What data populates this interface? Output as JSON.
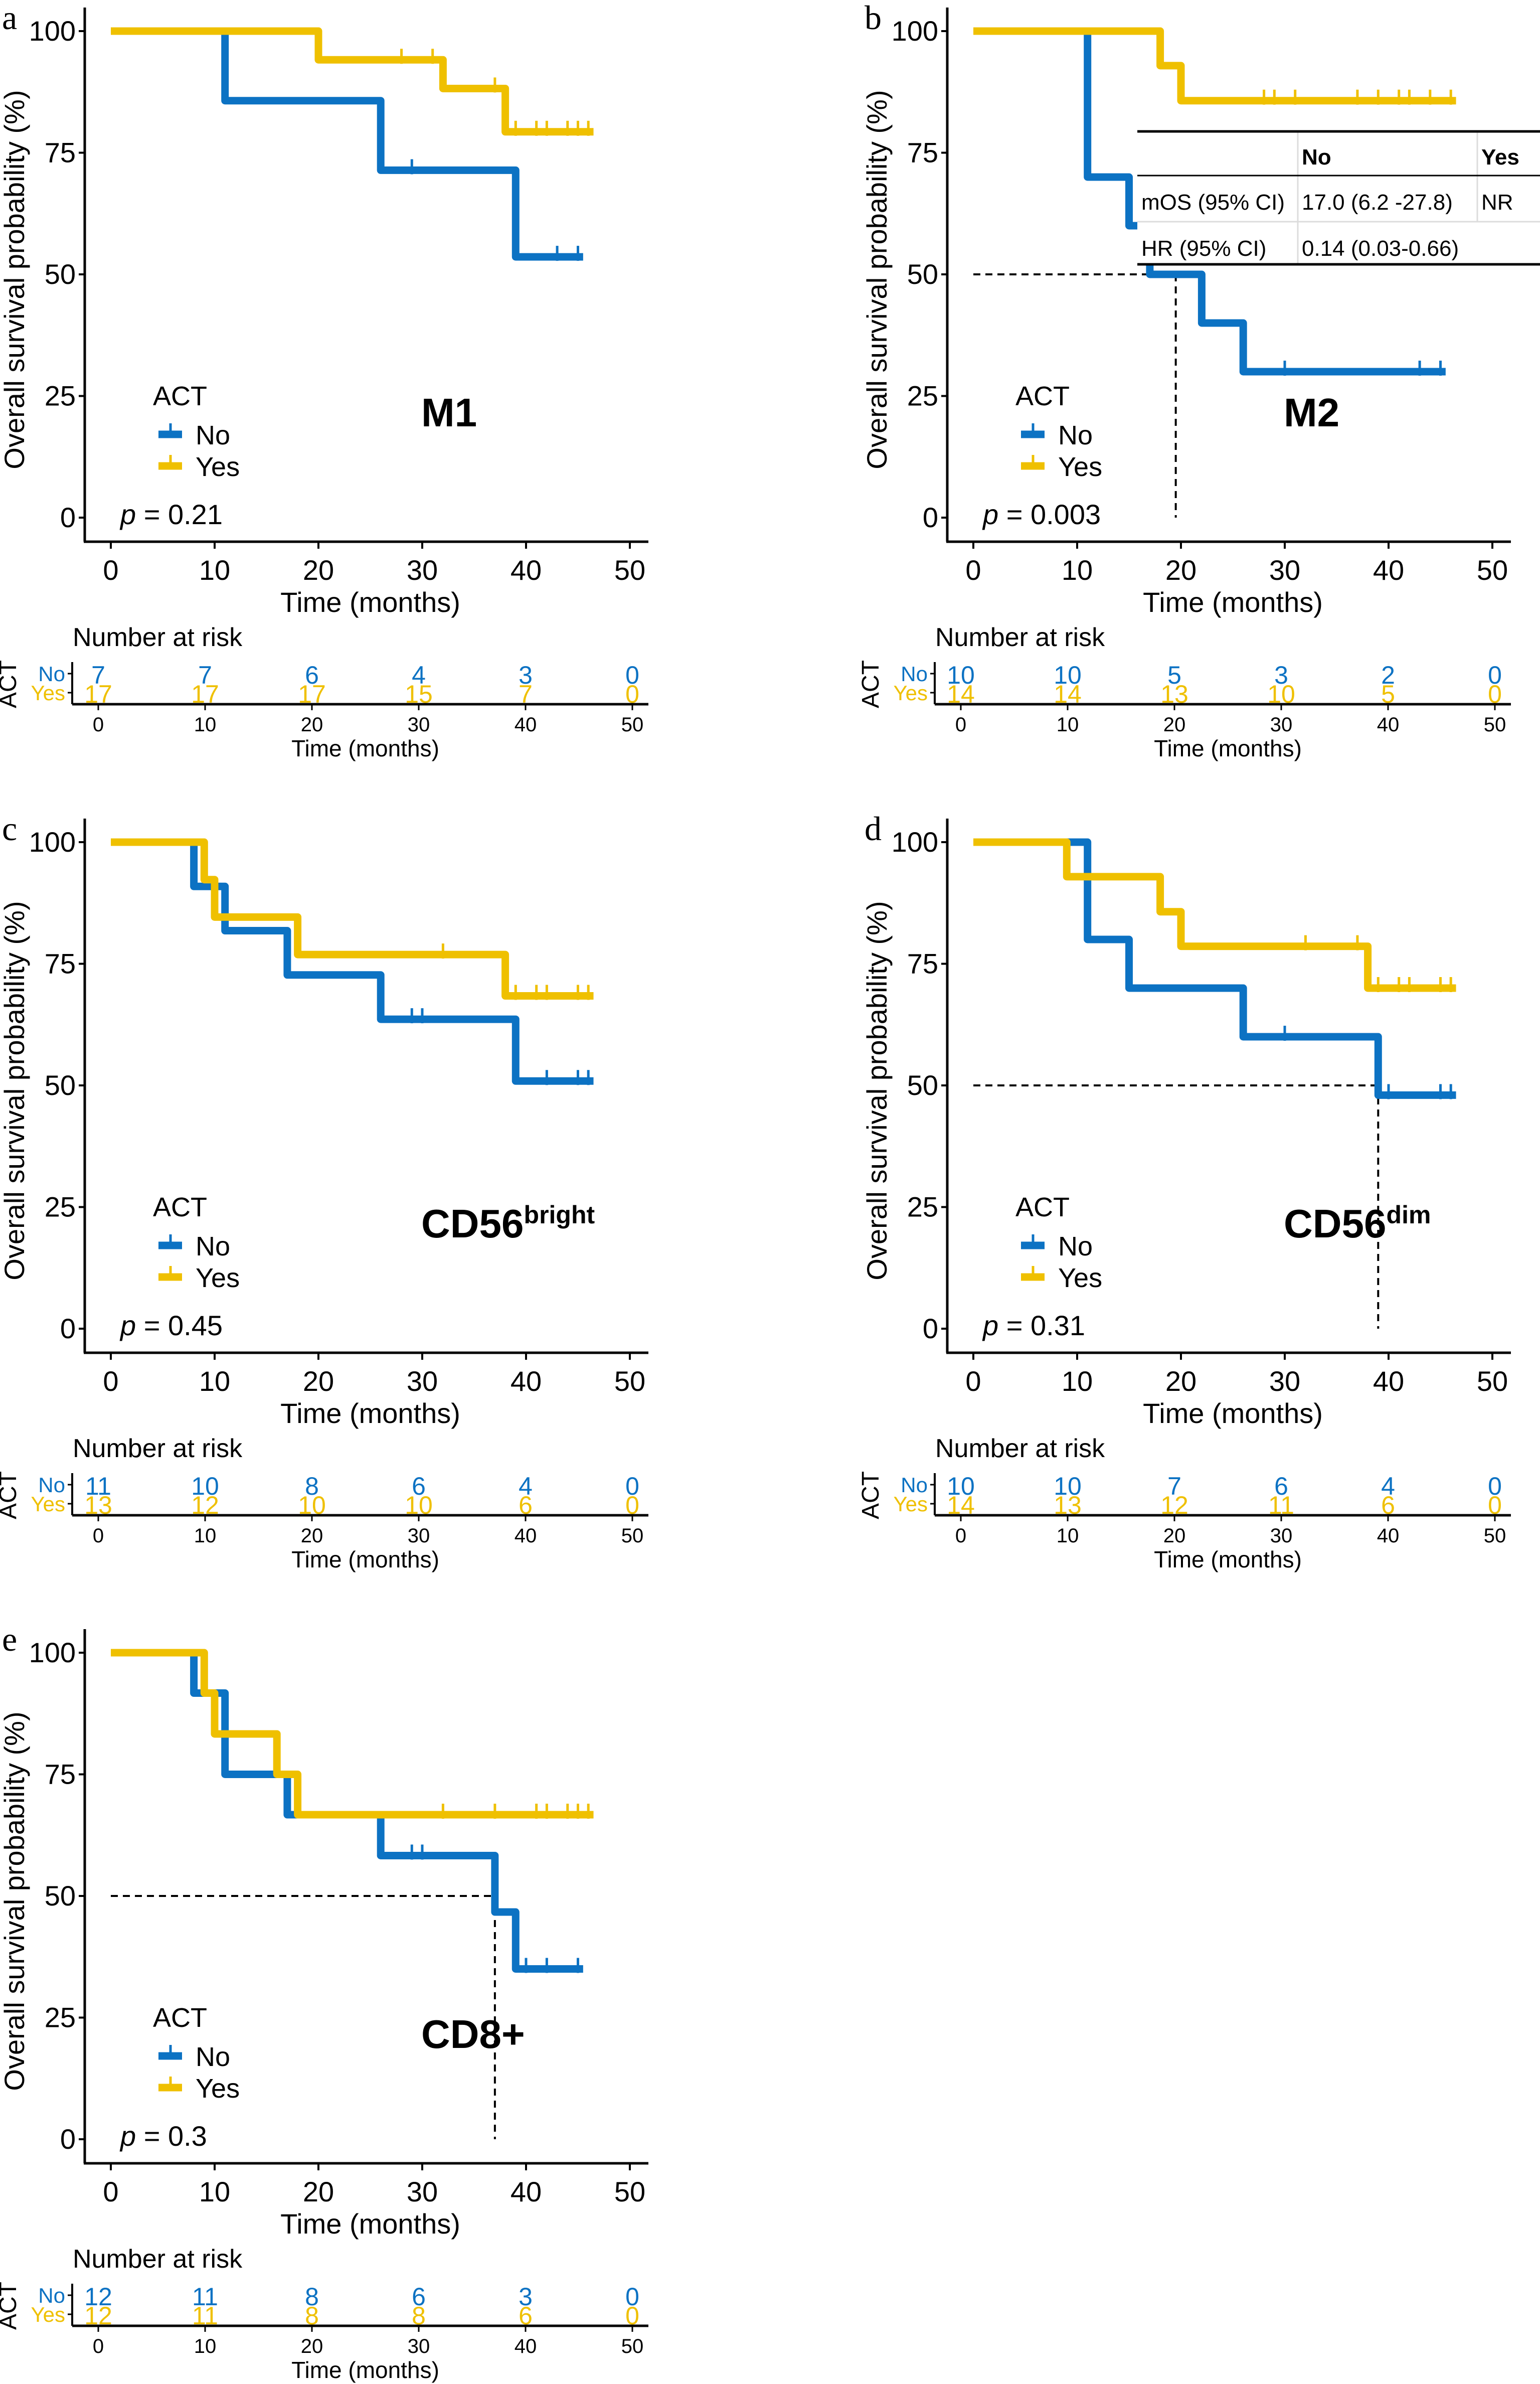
{
  "figure": {
    "colors": {
      "No": "#0C72C3",
      "Yes": "#EFC000",
      "axis": "#000000",
      "median_line": "#000000"
    },
    "legend_title": "ACT",
    "legend_labels": [
      "No",
      "Yes"
    ],
    "risk_title": "Number at risk",
    "risk_ylabel": "ACT",
    "risk_row_labels": [
      "No",
      "Yes"
    ]
  },
  "chart_data": [
    {
      "panel": "a",
      "type": "line",
      "subtype": "kaplan-meier",
      "annotation": "M1",
      "annotation_sup": "",
      "pvalue_label": "p",
      "pvalue_text": " = 0.21",
      "xlabel": "Time (months)",
      "ylabel": "Overall survival probability (%)",
      "xlim": [
        0,
        50
      ],
      "ylim": [
        0,
        100
      ],
      "xticks": [
        0,
        10,
        20,
        30,
        40,
        50
      ],
      "yticks": [
        0,
        25,
        50,
        75,
        100
      ],
      "grid": false,
      "legend_position": "bottom-left",
      "series": [
        {
          "name": "No",
          "steps": [
            [
              0,
              100
            ],
            [
              11,
              85.7
            ],
            [
              26,
              71.4
            ],
            [
              39,
              53.6
            ]
          ],
          "end": 45.5,
          "censored": [
            29,
            43,
            45
          ]
        },
        {
          "name": "Yes",
          "steps": [
            [
              0,
              100
            ],
            [
              20,
              94.1
            ],
            [
              32,
              88.2
            ],
            [
              38,
              79.3
            ]
          ],
          "end": 46.5,
          "censored": [
            28,
            31,
            37,
            39,
            41,
            42,
            44,
            45,
            46
          ]
        }
      ],
      "median_line": null,
      "risk_table": {
        "times": [
          0,
          10,
          20,
          30,
          40,
          50
        ],
        "No": [
          "7",
          "7",
          "6",
          "4",
          "3",
          "0"
        ],
        "Yes": [
          "17",
          "17",
          "17",
          "15",
          "7",
          "0"
        ]
      }
    },
    {
      "panel": "b",
      "type": "line",
      "subtype": "kaplan-meier",
      "annotation": "M2",
      "annotation_sup": "",
      "pvalue_label": "p",
      "pvalue_text": " = 0.003",
      "xlabel": "Time (months)",
      "ylabel": "Overall survival probability (%)",
      "xlim": [
        0,
        50
      ],
      "ylim": [
        0,
        100
      ],
      "xticks": [
        0,
        10,
        20,
        30,
        40,
        50
      ],
      "yticks": [
        0,
        25,
        50,
        75,
        100
      ],
      "grid": false,
      "legend_position": "bottom-left",
      "series": [
        {
          "name": "No",
          "steps": [
            [
              0,
              100
            ],
            [
              11,
              70
            ],
            [
              15,
              60
            ],
            [
              17,
              50
            ],
            [
              22,
              40
            ],
            [
              26,
              30
            ]
          ],
          "end": 45.5,
          "censored": [
            30,
            43,
            45
          ]
        },
        {
          "name": "Yes",
          "steps": [
            [
              0,
              100
            ],
            [
              18,
              92.9
            ],
            [
              20,
              85.7
            ]
          ],
          "end": 46.5,
          "censored": [
            28,
            29,
            31,
            37,
            39,
            41,
            42,
            44,
            46
          ]
        }
      ],
      "median_line": {
        "x": 19.5,
        "y": 50
      },
      "summary_table": {
        "headers": [
          "",
          "No",
          "Yes"
        ],
        "rows": [
          [
            "mOS (95% CI)",
            "17.0 (6.2  -27.8)",
            "NR"
          ],
          [
            "HR (95% CI)",
            "0.14 (0.03-0.66)",
            ""
          ]
        ]
      },
      "risk_table": {
        "times": [
          0,
          10,
          20,
          30,
          40,
          50
        ],
        "No": [
          "10",
          "10",
          "5",
          "3",
          "2",
          "0"
        ],
        "Yes": [
          "14",
          "14",
          "13",
          "10",
          "5",
          "0"
        ]
      }
    },
    {
      "panel": "c",
      "type": "line",
      "subtype": "kaplan-meier",
      "annotation": "CD56",
      "annotation_sup": "bright",
      "pvalue_label": "p",
      "pvalue_text": " = 0.45",
      "xlabel": "Time (months)",
      "ylabel": "Overall survival probability (%)",
      "xlim": [
        0,
        50
      ],
      "ylim": [
        0,
        100
      ],
      "xticks": [
        0,
        10,
        20,
        30,
        40,
        50
      ],
      "yticks": [
        0,
        25,
        50,
        75,
        100
      ],
      "grid": false,
      "legend_position": "bottom-left",
      "series": [
        {
          "name": "No",
          "steps": [
            [
              0,
              100
            ],
            [
              8,
              90.9
            ],
            [
              11,
              81.8
            ],
            [
              17,
              72.7
            ],
            [
              26,
              63.6
            ],
            [
              39,
              50.9
            ]
          ],
          "end": 46.5,
          "censored": [
            29,
            30,
            42,
            45,
            46
          ]
        },
        {
          "name": "Yes",
          "steps": [
            [
              0,
              100
            ],
            [
              9,
              92.3
            ],
            [
              10,
              84.6
            ],
            [
              18,
              76.9
            ],
            [
              38,
              68.4
            ]
          ],
          "end": 46.5,
          "censored": [
            32,
            39,
            41,
            42,
            45,
            46
          ]
        }
      ],
      "median_line": null,
      "risk_table": {
        "times": [
          0,
          10,
          20,
          30,
          40,
          50
        ],
        "No": [
          "11",
          "10",
          "8",
          "6",
          "4",
          "0"
        ],
        "Yes": [
          "13",
          "12",
          "10",
          "10",
          "6",
          "0"
        ]
      }
    },
    {
      "panel": "d",
      "type": "line",
      "subtype": "kaplan-meier",
      "annotation": "CD56",
      "annotation_sup": "dim",
      "pvalue_label": "p",
      "pvalue_text": " = 0.31",
      "xlabel": "Time (months)",
      "ylabel": "Overall survival probability (%)",
      "xlim": [
        0,
        50
      ],
      "ylim": [
        0,
        100
      ],
      "xticks": [
        0,
        10,
        20,
        30,
        40,
        50
      ],
      "yticks": [
        0,
        25,
        50,
        75,
        100
      ],
      "grid": false,
      "legend_position": "bottom-left",
      "series": [
        {
          "name": "No",
          "steps": [
            [
              0,
              100
            ],
            [
              11,
              80
            ],
            [
              15,
              70
            ],
            [
              26,
              60
            ],
            [
              39,
              48
            ]
          ],
          "end": 46.5,
          "censored": [
            30,
            40,
            45,
            46
          ]
        },
        {
          "name": "Yes",
          "steps": [
            [
              0,
              100
            ],
            [
              9,
              92.9
            ],
            [
              18,
              85.7
            ],
            [
              20,
              78.6
            ],
            [
              38,
              70
            ]
          ],
          "end": 46.5,
          "censored": [
            32,
            37,
            39,
            41,
            42,
            45,
            46
          ]
        }
      ],
      "median_line": {
        "x": 39,
        "y": 50
      },
      "risk_table": {
        "times": [
          0,
          10,
          20,
          30,
          40,
          50
        ],
        "No": [
          "10",
          "10",
          "7",
          "6",
          "4",
          "0"
        ],
        "Yes": [
          "14",
          "13",
          "12",
          "11",
          "6",
          "0"
        ]
      }
    },
    {
      "panel": "e",
      "type": "line",
      "subtype": "kaplan-meier",
      "annotation": "CD8+",
      "annotation_sup": "",
      "pvalue_label": "p",
      "pvalue_text": " = 0.3",
      "xlabel": "Time (months)",
      "ylabel": "Overall survival probability (%)",
      "xlim": [
        0,
        50
      ],
      "ylim": [
        0,
        100
      ],
      "xticks": [
        0,
        10,
        20,
        30,
        40,
        50
      ],
      "yticks": [
        0,
        25,
        50,
        75,
        100
      ],
      "grid": false,
      "legend_position": "bottom-left",
      "series": [
        {
          "name": "No",
          "steps": [
            [
              0,
              100
            ],
            [
              8,
              91.7
            ],
            [
              11,
              75
            ],
            [
              17,
              66.7
            ],
            [
              26,
              58.3
            ],
            [
              37,
              46.7
            ],
            [
              39,
              35
            ]
          ],
          "end": 45.5,
          "censored": [
            29,
            30,
            40,
            42,
            45
          ]
        },
        {
          "name": "Yes",
          "steps": [
            [
              0,
              100
            ],
            [
              9,
              91.7
            ],
            [
              10,
              83.3
            ],
            [
              16,
              75
            ],
            [
              18,
              66.7
            ]
          ],
          "end": 46.5,
          "censored": [
            32,
            37,
            41,
            42,
            44,
            45,
            46
          ]
        }
      ],
      "median_line": {
        "x": 37,
        "y": 50
      },
      "risk_table": {
        "times": [
          0,
          10,
          20,
          30,
          40,
          50
        ],
        "No": [
          "12",
          "11",
          "8",
          "6",
          "3",
          "0"
        ],
        "Yes": [
          "12",
          "11",
          "8",
          "8",
          "6",
          "0"
        ]
      }
    }
  ]
}
